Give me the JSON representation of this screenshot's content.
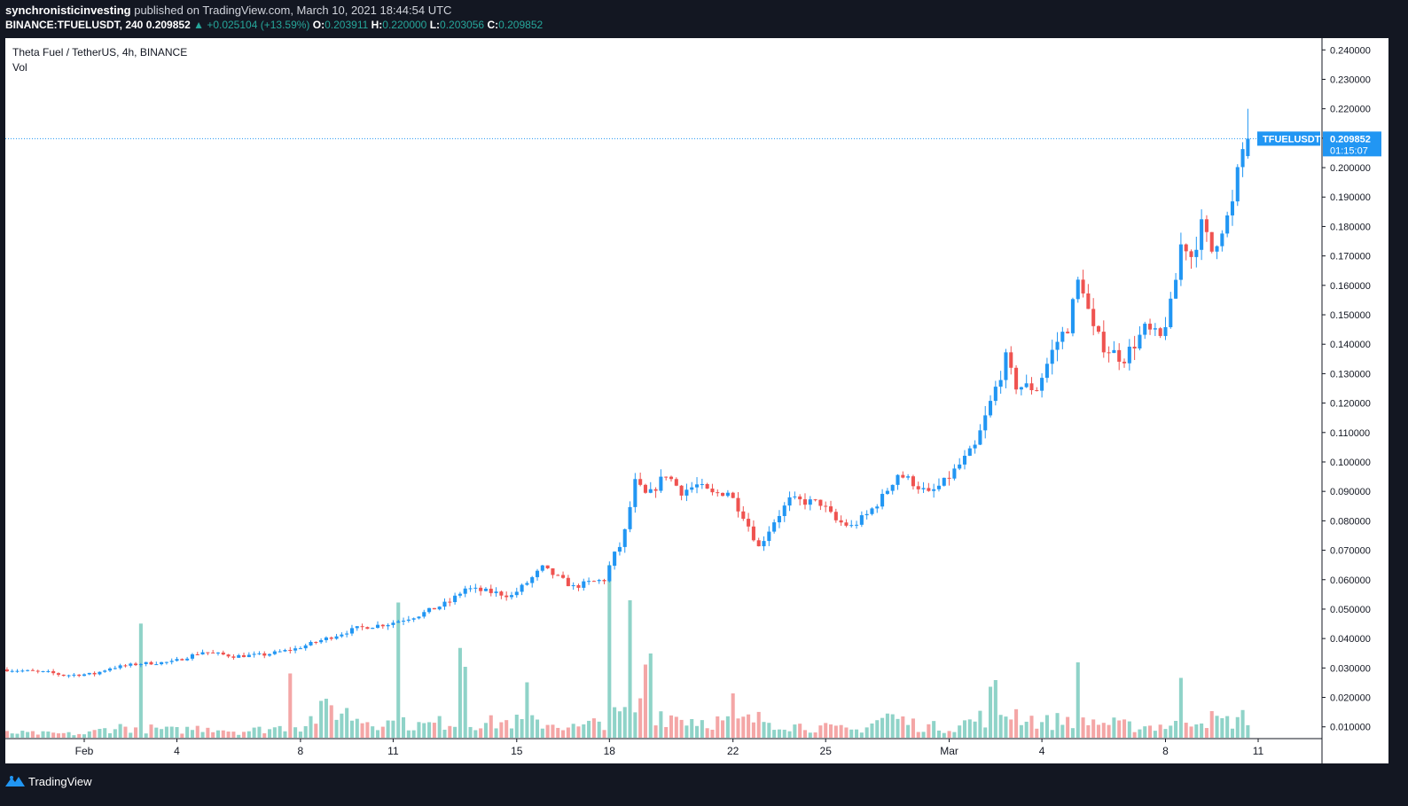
{
  "header": {
    "author": "synchronisticinvesting",
    "published_text": "published on TradingView.com, March 10, 2021 18:44:54 UTC",
    "symbol_interval": "BINANCE:TFUELUSDT, 240",
    "last": "0.209852",
    "change": "▲ +0.025104 (+13.59%)",
    "o_label": "O:",
    "o_value": "0.203911",
    "h_label": "H:",
    "h_value": "0.220000",
    "l_label": "L:",
    "l_value": "0.203056",
    "c_label": "C:",
    "c_value": "0.209852"
  },
  "legend": {
    "title": "Theta Fuel / TetherUS, 4h, BINANCE",
    "volume_label": "Vol"
  },
  "price_tag": {
    "symbol": "TFUELUSDT",
    "price": "0.209852",
    "countdown": "01:15:07"
  },
  "footer": {
    "brand": "TradingView"
  },
  "colors": {
    "up": "#2196f3",
    "down": "#ef5350",
    "vol_up": "#8fd3c8",
    "vol_down": "#f4a6a6",
    "tag": "#2196f3",
    "grid": "#ffffff",
    "axis_text": "#131722"
  },
  "chart_data": {
    "type": "candlestick",
    "title": "Theta Fuel / TetherUS, 4h, BINANCE",
    "y_axis": {
      "min": 0.006,
      "max": 0.244,
      "ticks": [
        "0.010000",
        "0.020000",
        "0.030000",
        "0.040000",
        "0.050000",
        "0.060000",
        "0.070000",
        "0.080000",
        "0.090000",
        "0.100000",
        "0.110000",
        "0.120000",
        "0.130000",
        "0.140000",
        "0.150000",
        "0.160000",
        "0.170000",
        "0.180000",
        "0.190000",
        "0.200000",
        "0.210000",
        "0.220000",
        "0.230000",
        "0.240000"
      ]
    },
    "x_axis": {
      "ticks": [
        {
          "label": "Feb",
          "day": 4.0
        },
        {
          "label": "4",
          "day": 7.0
        },
        {
          "label": "8",
          "day": 11.0
        },
        {
          "label": "11",
          "day": 14.0
        },
        {
          "label": "15",
          "day": 18.0
        },
        {
          "label": "18",
          "day": 21.0
        },
        {
          "label": "22",
          "day": 25.0
        },
        {
          "label": "25",
          "day": 28.0
        },
        {
          "label": "Mar",
          "day": 32.0
        },
        {
          "label": "4",
          "day": 35.0
        },
        {
          "label": "8",
          "day": 39.0
        },
        {
          "label": "11",
          "day": 42.0
        }
      ]
    },
    "anchors_note_removed": true,
    "price_path": [
      [
        1.5,
        0.0295
      ],
      [
        3.0,
        0.0285
      ],
      [
        3.5,
        0.0275
      ],
      [
        4.5,
        0.028
      ],
      [
        5.0,
        0.03
      ],
      [
        6.0,
        0.0315
      ],
      [
        7.0,
        0.032
      ],
      [
        8.0,
        0.0355
      ],
      [
        9.0,
        0.034
      ],
      [
        10.0,
        0.0345
      ],
      [
        11.0,
        0.0365
      ],
      [
        12.0,
        0.04
      ],
      [
        13.0,
        0.0435
      ],
      [
        14.0,
        0.045
      ],
      [
        15.0,
        0.048
      ],
      [
        16.0,
        0.0525
      ],
      [
        16.5,
        0.057
      ],
      [
        17.5,
        0.0555
      ],
      [
        18.0,
        0.0545
      ],
      [
        18.5,
        0.059
      ],
      [
        19.0,
        0.064
      ],
      [
        20.0,
        0.0575
      ],
      [
        20.5,
        0.059
      ],
      [
        21.0,
        0.06
      ],
      [
        21.3,
        0.068
      ],
      [
        21.6,
        0.073
      ],
      [
        22.0,
        0.093
      ],
      [
        22.4,
        0.088
      ],
      [
        23.0,
        0.096
      ],
      [
        23.5,
        0.09
      ],
      [
        24.0,
        0.092
      ],
      [
        24.5,
        0.089
      ],
      [
        25.0,
        0.09
      ],
      [
        25.5,
        0.082
      ],
      [
        26.0,
        0.071
      ],
      [
        26.5,
        0.08
      ],
      [
        27.0,
        0.087
      ],
      [
        28.0,
        0.086
      ],
      [
        28.5,
        0.08
      ],
      [
        29.0,
        0.078
      ],
      [
        29.5,
        0.082
      ],
      [
        30.0,
        0.088
      ],
      [
        30.5,
        0.096
      ],
      [
        31.0,
        0.093
      ],
      [
        31.5,
        0.089
      ],
      [
        32.0,
        0.093
      ],
      [
        33.0,
        0.105
      ],
      [
        33.5,
        0.12
      ],
      [
        34.0,
        0.135
      ],
      [
        34.3,
        0.126
      ],
      [
        35.0,
        0.125
      ],
      [
        35.6,
        0.14
      ],
      [
        36.0,
        0.146
      ],
      [
        36.4,
        0.164
      ],
      [
        36.8,
        0.145
      ],
      [
        37.2,
        0.139
      ],
      [
        37.8,
        0.135
      ],
      [
        38.5,
        0.145
      ],
      [
        39.0,
        0.142
      ],
      [
        39.4,
        0.155
      ],
      [
        39.7,
        0.176
      ],
      [
        40.0,
        0.17
      ],
      [
        40.4,
        0.182
      ],
      [
        40.6,
        0.17
      ],
      [
        41.0,
        0.18
      ],
      [
        41.3,
        0.185
      ],
      [
        41.6,
        0.204
      ],
      [
        41.8,
        0.2099
      ]
    ],
    "volume_path": [
      [
        1.5,
        0.4
      ],
      [
        4.0,
        0.3
      ],
      [
        5.0,
        0.9
      ],
      [
        7.0,
        0.6
      ],
      [
        8.0,
        0.9
      ],
      [
        9.0,
        0.5
      ],
      [
        11.0,
        1.0
      ],
      [
        12.0,
        2.5
      ],
      [
        13.0,
        1.5
      ],
      [
        14.0,
        1.2
      ],
      [
        15.0,
        1.0
      ],
      [
        16.0,
        1.4
      ],
      [
        17.0,
        1.2
      ],
      [
        18.0,
        1.3
      ],
      [
        19.0,
        1.2
      ],
      [
        20.0,
        0.8
      ],
      [
        21.0,
        1.5
      ],
      [
        22.0,
        2.5
      ],
      [
        23.0,
        1.8
      ],
      [
        24.0,
        1.4
      ],
      [
        25.0,
        1.3
      ],
      [
        26.0,
        1.5
      ],
      [
        27.0,
        1.0
      ],
      [
        28.0,
        0.8
      ],
      [
        29.0,
        0.6
      ],
      [
        30.0,
        1.8
      ],
      [
        31.0,
        1.0
      ],
      [
        32.0,
        0.8
      ],
      [
        33.0,
        1.6
      ],
      [
        34.0,
        2.2
      ],
      [
        35.0,
        1.2
      ],
      [
        36.0,
        1.6
      ],
      [
        37.0,
        1.2
      ],
      [
        38.0,
        0.9
      ],
      [
        39.0,
        1.0
      ],
      [
        40.0,
        1.7
      ],
      [
        41.0,
        1.3
      ],
      [
        41.8,
        1.8
      ]
    ],
    "volume_spikes": [
      [
        5.9,
        10.3
      ],
      [
        10.6,
        5.8
      ],
      [
        14.1,
        12.2
      ],
      [
        16.2,
        8.1
      ],
      [
        16.4,
        6.4
      ],
      [
        18.3,
        5.0
      ],
      [
        21.0,
        15.6
      ],
      [
        21.6,
        12.4
      ],
      [
        22.2,
        6.6
      ],
      [
        22.4,
        7.6
      ],
      [
        25.0,
        4.0
      ],
      [
        33.3,
        4.6
      ],
      [
        33.5,
        5.2
      ],
      [
        36.2,
        6.8
      ],
      [
        39.5,
        5.4
      ]
    ],
    "volume_scale_max": 16
  }
}
